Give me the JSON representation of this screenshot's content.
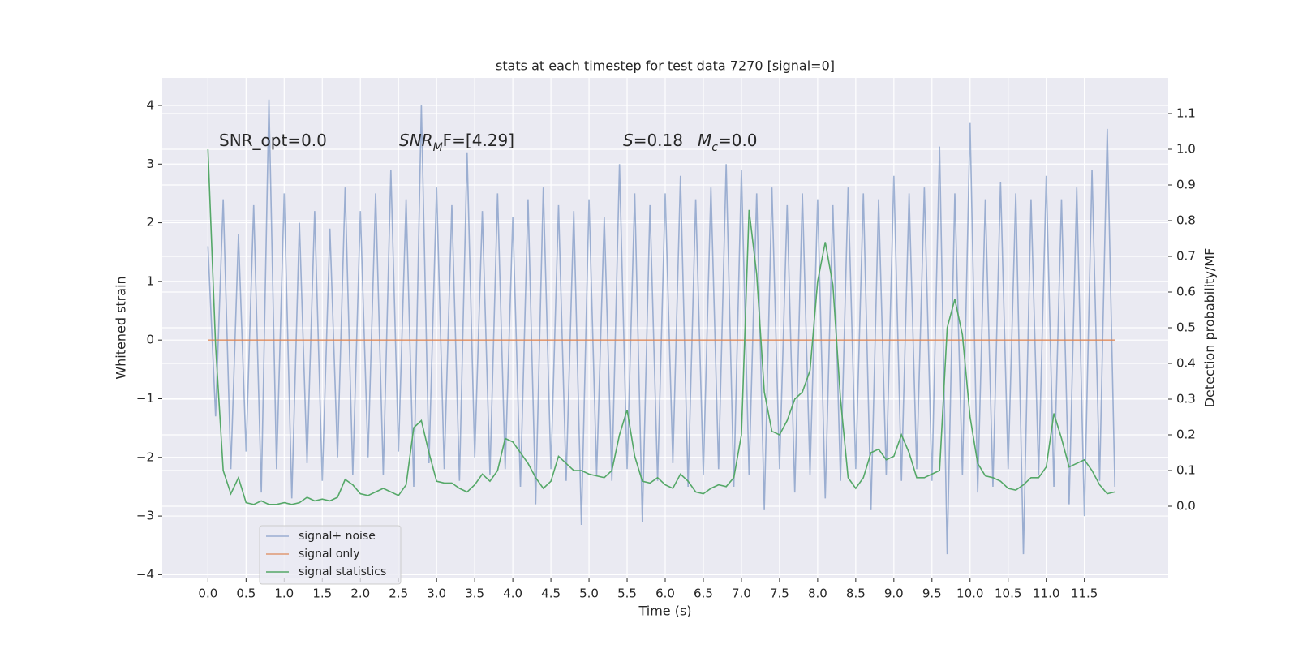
{
  "chart_data": {
    "type": "line",
    "title": "stats at each timestep for test data 7270 [signal=0]",
    "xlabel": "Time (s)",
    "ylabel": "Whitened strain",
    "y2label": "Detection probability/MF",
    "xlim": [
      -0.6,
      12.6
    ],
    "ylim": [
      -4.05,
      4.47
    ],
    "y2lim": [
      -0.2,
      1.2
    ],
    "grid": true,
    "legend_loc": "lower left",
    "xticks": [
      {
        "value": 0,
        "label": "0.0"
      },
      {
        "value": 0.5,
        "label": "0.5"
      },
      {
        "value": 1,
        "label": "1.0"
      },
      {
        "value": 1.5,
        "label": "1.5"
      },
      {
        "value": 2,
        "label": "2.0"
      },
      {
        "value": 2.5,
        "label": "2.5"
      },
      {
        "value": 3,
        "label": "3.0"
      },
      {
        "value": 3.5,
        "label": "3.5"
      },
      {
        "value": 4,
        "label": "4.0"
      },
      {
        "value": 4.5,
        "label": "4.5"
      },
      {
        "value": 5,
        "label": "5.0"
      },
      {
        "value": 5.5,
        "label": "5.5"
      },
      {
        "value": 6,
        "label": "6.0"
      },
      {
        "value": 6.5,
        "label": "6.5"
      },
      {
        "value": 7,
        "label": "7.0"
      },
      {
        "value": 7.5,
        "label": "7.5"
      },
      {
        "value": 8,
        "label": "8.0"
      },
      {
        "value": 8.5,
        "label": "8.5"
      },
      {
        "value": 9,
        "label": "9.0"
      },
      {
        "value": 9.5,
        "label": "9.5"
      },
      {
        "value": 10,
        "label": "10.0"
      },
      {
        "value": 10.5,
        "label": "10.5"
      },
      {
        "value": 11,
        "label": "11.0"
      },
      {
        "value": 11.5,
        "label": "11.5"
      }
    ],
    "yticks": [
      {
        "value": -4,
        "label": "−4"
      },
      {
        "value": -3,
        "label": "−3"
      },
      {
        "value": -2,
        "label": "−2"
      },
      {
        "value": -1,
        "label": "−1"
      },
      0,
      1,
      2,
      3,
      4
    ],
    "y2ticks": [
      {
        "value": 0,
        "label": "0.0"
      },
      {
        "value": 0.1,
        "label": "0.1"
      },
      {
        "value": 0.2,
        "label": "0.2"
      },
      {
        "value": 0.3,
        "label": "0.3"
      },
      {
        "value": 0.4,
        "label": "0.4"
      },
      {
        "value": 0.5,
        "label": "0.5"
      },
      {
        "value": 0.6,
        "label": "0.6"
      },
      {
        "value": 0.7,
        "label": "0.7"
      },
      {
        "value": 0.8,
        "label": "0.8"
      },
      {
        "value": 0.9,
        "label": "0.9"
      },
      {
        "value": 1,
        "label": "1.0"
      },
      {
        "value": 1.1,
        "label": "1.1"
      }
    ],
    "annotations": [
      {
        "parts": [
          {
            "text": "SNR_opt=0.0"
          }
        ]
      },
      {
        "parts": [
          {
            "text": "SNR",
            "style": "italic"
          },
          {
            "text": "M",
            "style": "sub"
          },
          {
            "text": "F=[4.29]"
          }
        ]
      },
      {
        "parts": [
          {
            "text": "S",
            "style": "italic"
          },
          {
            "text": "=0.18"
          }
        ]
      },
      {
        "parts": [
          {
            "text": "M",
            "style": "italic"
          },
          {
            "text": "c",
            "style": "sub"
          },
          {
            "text": "=0.0"
          }
        ]
      }
    ],
    "x": [
      0,
      0.1,
      0.2,
      0.3,
      0.4,
      0.5,
      0.6,
      0.7,
      0.8,
      0.9,
      1,
      1.1,
      1.2,
      1.3,
      1.4,
      1.5,
      1.6,
      1.7,
      1.8,
      1.9,
      2,
      2.1,
      2.2,
      2.3,
      2.4,
      2.5,
      2.6,
      2.7,
      2.8,
      2.9,
      3,
      3.1,
      3.2,
      3.3,
      3.4,
      3.5,
      3.6,
      3.7,
      3.8,
      3.9,
      4,
      4.1,
      4.2,
      4.3,
      4.4,
      4.5,
      4.6,
      4.7,
      4.8,
      4.9,
      5,
      5.1,
      5.2,
      5.3,
      5.4,
      5.5,
      5.6,
      5.7,
      5.8,
      5.9,
      6,
      6.1,
      6.2,
      6.3,
      6.4,
      6.5,
      6.6,
      6.7,
      6.8,
      6.9,
      7,
      7.1,
      7.2,
      7.3,
      7.4,
      7.5,
      7.6,
      7.7,
      7.8,
      7.9,
      8,
      8.1,
      8.2,
      8.3,
      8.4,
      8.5,
      8.6,
      8.7,
      8.8,
      8.9,
      9,
      9.1,
      9.2,
      9.3,
      9.4,
      9.5,
      9.6,
      9.7,
      9.8,
      9.9,
      10,
      10.1,
      10.2,
      10.3,
      10.4,
      10.5,
      10.6,
      10.7,
      10.8,
      10.9,
      11,
      11.1,
      11.2,
      11.3,
      11.4,
      11.5,
      11.6,
      11.7,
      11.8,
      11.9
    ],
    "series": [
      {
        "name": "signal+ noise",
        "color": "#4c72b0",
        "opacity": 0.5,
        "values": [
          1.6,
          -1.3,
          2.4,
          -2.2,
          1.8,
          -1.9,
          2.3,
          -2.6,
          4.1,
          -2.2,
          2.5,
          -2.7,
          2.0,
          -2.1,
          2.2,
          -2.4,
          1.9,
          -2.0,
          2.6,
          -2.3,
          2.2,
          -2.0,
          2.5,
          -2.3,
          2.9,
          -1.9,
          2.4,
          -2.5,
          4.0,
          -2.1,
          2.6,
          -2.2,
          2.3,
          -2.4,
          3.2,
          -2.0,
          2.2,
          -2.3,
          2.5,
          -2.2,
          2.1,
          -2.5,
          2.4,
          -2.8,
          2.6,
          -2.2,
          2.3,
          -2.4,
          2.2,
          -3.15,
          2.4,
          -2.3,
          2.1,
          -2.4,
          3.0,
          -2.2,
          2.5,
          -3.1,
          2.3,
          -2.4,
          2.5,
          -2.1,
          2.8,
          -2.5,
          2.4,
          -2.3,
          2.6,
          -2.2,
          3.0,
          -2.5,
          2.9,
          -2.3,
          2.5,
          -2.9,
          2.6,
          -2.2,
          2.3,
          -2.6,
          2.5,
          -2.3,
          2.4,
          -2.7,
          2.3,
          -2.4,
          2.6,
          -2.2,
          2.5,
          -2.9,
          2.4,
          -2.3,
          2.8,
          -2.4,
          2.5,
          -2.2,
          2.6,
          -2.4,
          3.3,
          -3.65,
          2.5,
          -2.3,
          3.7,
          -2.6,
          2.4,
          -2.5,
          2.7,
          -2.2,
          2.5,
          -3.65,
          2.4,
          -2.3,
          2.8,
          -2.5,
          2.4,
          -2.8,
          2.6,
          -3.0,
          2.9,
          -2.4,
          3.6,
          -2.5
        ]
      },
      {
        "name": "signal only",
        "color": "#dd8452",
        "opacity": 0.8,
        "values": [
          0,
          0,
          0,
          0,
          0,
          0,
          0,
          0,
          0,
          0,
          0,
          0,
          0,
          0,
          0,
          0,
          0,
          0,
          0,
          0,
          0,
          0,
          0,
          0,
          0,
          0,
          0,
          0,
          0,
          0,
          0,
          0,
          0,
          0,
          0,
          0,
          0,
          0,
          0,
          0,
          0,
          0,
          0,
          0,
          0,
          0,
          0,
          0,
          0,
          0,
          0,
          0,
          0,
          0,
          0,
          0,
          0,
          0,
          0,
          0,
          0,
          0,
          0,
          0,
          0,
          0,
          0,
          0,
          0,
          0,
          0,
          0,
          0,
          0,
          0,
          0,
          0,
          0,
          0,
          0,
          0,
          0,
          0,
          0,
          0,
          0,
          0,
          0,
          0,
          0,
          0,
          0,
          0,
          0,
          0,
          0,
          0,
          0,
          0,
          0,
          0,
          0,
          0,
          0,
          0,
          0,
          0,
          0,
          0,
          0,
          0,
          0,
          0,
          0,
          0,
          0,
          0,
          0,
          0,
          0
        ]
      },
      {
        "name": "signal statistics",
        "color": "#55a868",
        "opacity": 1,
        "axis": "y2",
        "values": [
          1.0,
          0.45,
          0.1,
          0.035,
          0.08,
          0.01,
          0.005,
          0.015,
          0.005,
          0.005,
          0.01,
          0.005,
          0.01,
          0.025,
          0.015,
          0.02,
          0.015,
          0.025,
          0.075,
          0.06,
          0.035,
          0.03,
          0.04,
          0.05,
          0.04,
          0.03,
          0.06,
          0.22,
          0.24,
          0.15,
          0.07,
          0.065,
          0.065,
          0.05,
          0.04,
          0.06,
          0.09,
          0.07,
          0.1,
          0.19,
          0.18,
          0.15,
          0.12,
          0.08,
          0.05,
          0.07,
          0.14,
          0.12,
          0.1,
          0.1,
          0.09,
          0.085,
          0.08,
          0.1,
          0.2,
          0.27,
          0.14,
          0.07,
          0.065,
          0.08,
          0.06,
          0.05,
          0.09,
          0.07,
          0.04,
          0.035,
          0.05,
          0.06,
          0.055,
          0.08,
          0.2,
          0.83,
          0.65,
          0.32,
          0.21,
          0.2,
          0.24,
          0.3,
          0.32,
          0.38,
          0.63,
          0.74,
          0.62,
          0.3,
          0.08,
          0.05,
          0.08,
          0.15,
          0.16,
          0.13,
          0.14,
          0.2,
          0.15,
          0.08,
          0.08,
          0.09,
          0.1,
          0.5,
          0.58,
          0.48,
          0.25,
          0.12,
          0.085,
          0.08,
          0.07,
          0.05,
          0.045,
          0.06,
          0.08,
          0.08,
          0.11,
          0.26,
          0.19,
          0.11,
          0.12,
          0.13,
          0.1,
          0.06,
          0.035,
          0.04
        ]
      }
    ]
  }
}
